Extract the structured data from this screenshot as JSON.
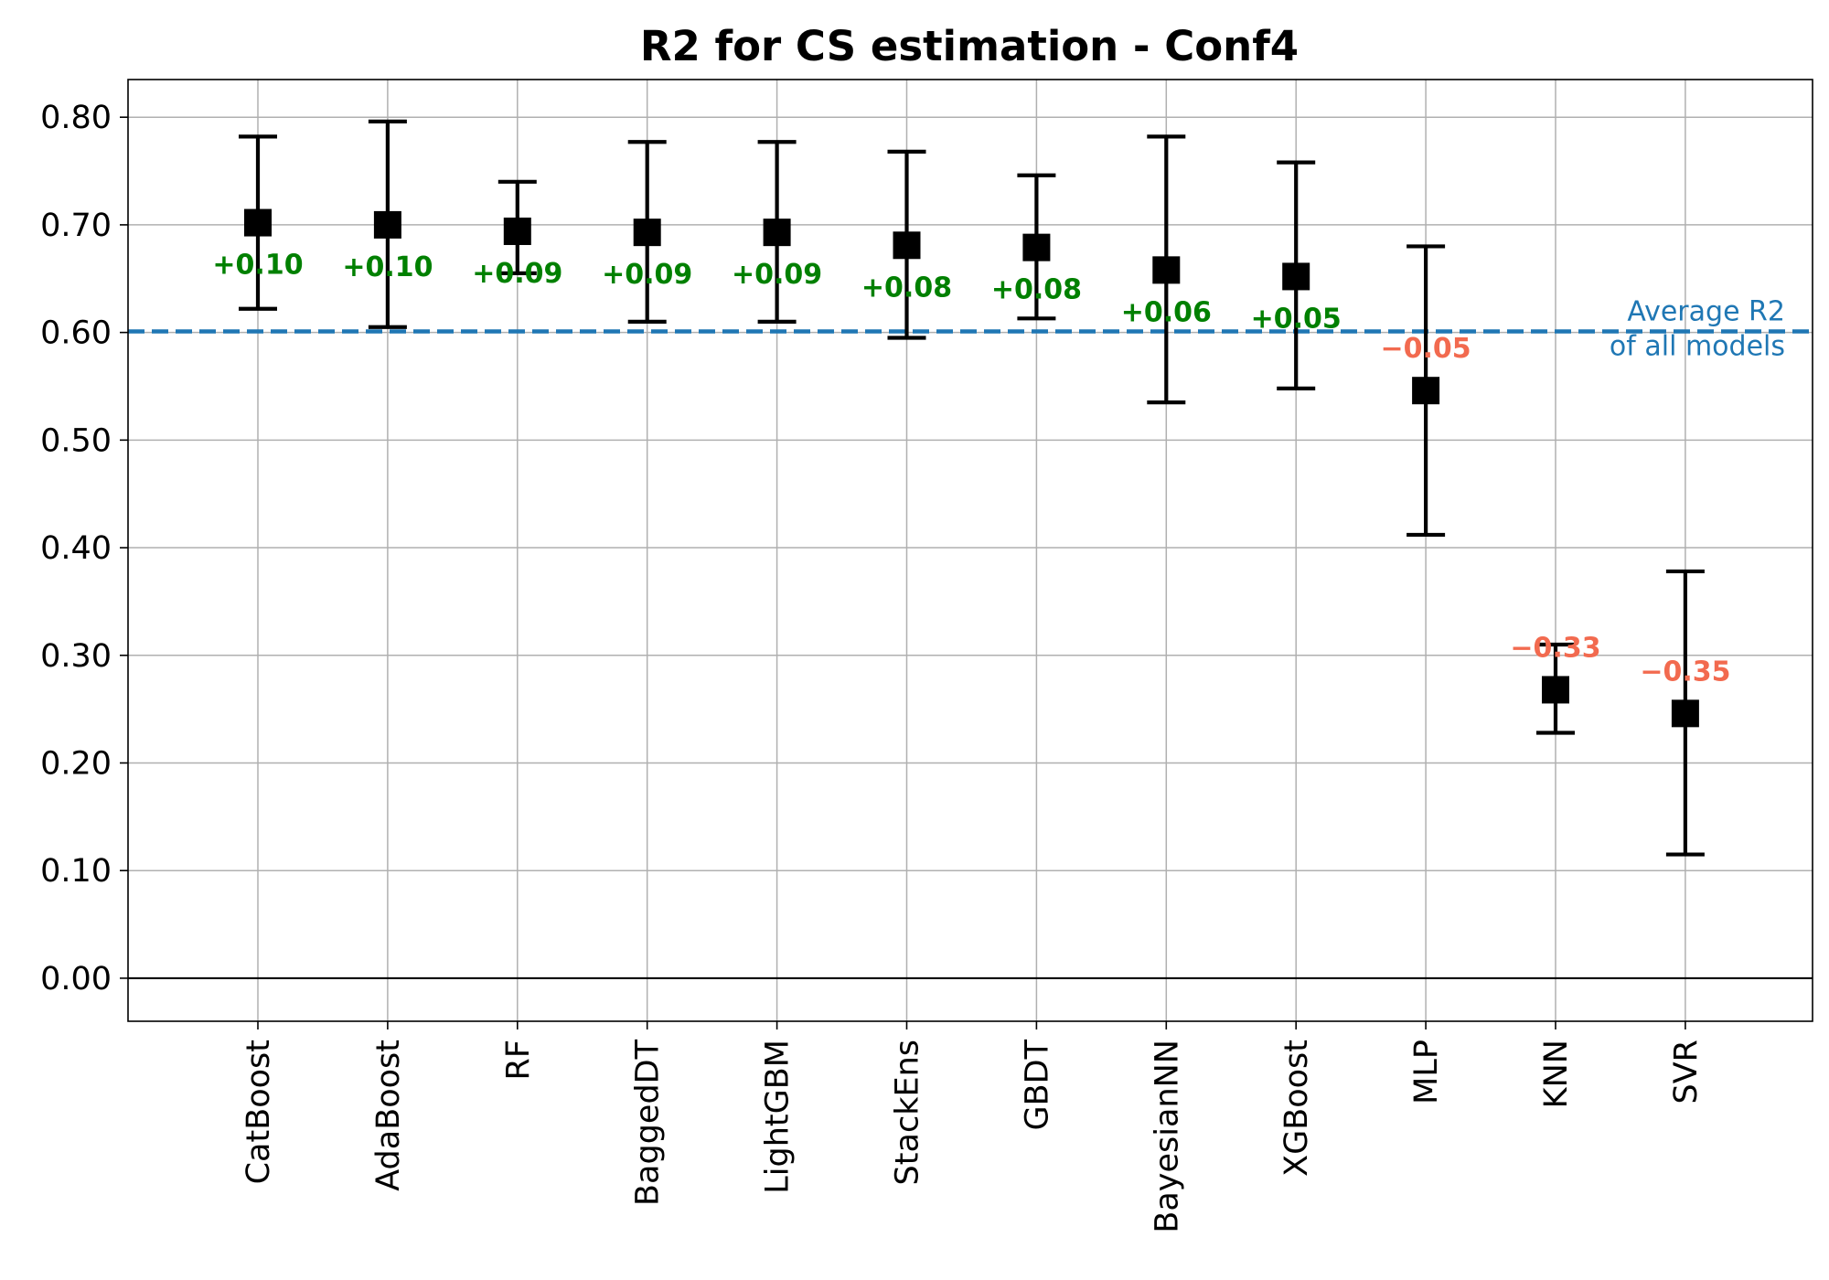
{
  "chart_data": {
    "type": "scatter",
    "title": "R2 for CS estimation - Conf4",
    "xlabel": "",
    "ylabel": "",
    "ylim": [
      -0.04,
      0.835
    ],
    "yticks": [
      "0.00",
      "0.10",
      "0.20",
      "0.30",
      "0.40",
      "0.50",
      "0.60",
      "0.70",
      "0.80"
    ],
    "grid": true,
    "categories": [
      "CatBoost",
      "AdaBoost",
      "RF",
      "BaggedDT",
      "LightGBM",
      "StackEns",
      "GBDT",
      "BayesianNN",
      "XGBoost",
      "MLP",
      "KNN",
      "SVR"
    ],
    "values": [
      0.702,
      0.7,
      0.694,
      0.693,
      0.693,
      0.681,
      0.679,
      0.658,
      0.652,
      0.546,
      0.268,
      0.246
    ],
    "error_low": [
      0.622,
      0.605,
      0.655,
      0.61,
      0.61,
      0.595,
      0.613,
      0.535,
      0.548,
      0.412,
      0.228,
      0.115
    ],
    "error_high": [
      0.782,
      0.796,
      0.74,
      0.777,
      0.777,
      0.768,
      0.746,
      0.782,
      0.758,
      0.68,
      0.31,
      0.378
    ],
    "delta_labels": [
      "+0.10",
      "+0.10",
      "+0.09",
      "+0.09",
      "+0.09",
      "+0.08",
      "+0.08",
      "+0.06",
      "+0.05",
      "−0.05",
      "−0.33",
      "−0.35"
    ],
    "reference_line": {
      "value": 0.601,
      "label_line1": "Average R2",
      "label_line2": "of all models"
    },
    "colors": {
      "positive": "#008000",
      "negative": "#f26a4f",
      "reference": "#1f77b4",
      "marker": "#000000",
      "grid": "#b0b0b0"
    }
  }
}
